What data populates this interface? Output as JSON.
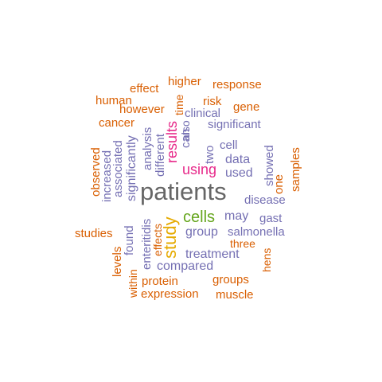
{
  "colors": {
    "orange": "#d95f02",
    "purple": "#7570b3",
    "magenta": "#e7298a",
    "green": "#66a61e",
    "gold": "#e6ab02",
    "gray": "#666666"
  },
  "words": [
    {
      "id": "patients",
      "text": "patients",
      "color": "gray"
    },
    {
      "id": "cells",
      "text": "cells",
      "color": "green"
    },
    {
      "id": "study",
      "text": "study",
      "color": "gold"
    },
    {
      "id": "results",
      "text": "results",
      "color": "magenta"
    },
    {
      "id": "using",
      "text": "using",
      "color": "magenta"
    },
    {
      "id": "group",
      "text": "group",
      "color": "purple"
    },
    {
      "id": "treatment",
      "text": "treatment",
      "color": "purple"
    },
    {
      "id": "compared",
      "text": "compared",
      "color": "purple"
    },
    {
      "id": "significantly",
      "text": "significantly",
      "color": "purple"
    },
    {
      "id": "associated",
      "text": "associated",
      "color": "purple"
    },
    {
      "id": "increased",
      "text": "increased",
      "color": "purple"
    },
    {
      "id": "analysis",
      "text": "analysis",
      "color": "purple"
    },
    {
      "id": "different",
      "text": "different",
      "color": "purple"
    },
    {
      "id": "can",
      "text": "can",
      "color": "purple"
    },
    {
      "id": "two",
      "text": "two",
      "color": "purple"
    },
    {
      "id": "also",
      "text": "also",
      "color": "purple"
    },
    {
      "id": "cell",
      "text": "cell",
      "color": "purple"
    },
    {
      "id": "data",
      "text": "data",
      "color": "purple"
    },
    {
      "id": "used",
      "text": "used",
      "color": "purple"
    },
    {
      "id": "showed",
      "text": "showed",
      "color": "purple"
    },
    {
      "id": "disease",
      "text": "disease",
      "color": "purple"
    },
    {
      "id": "may",
      "text": "may",
      "color": "purple"
    },
    {
      "id": "gast",
      "text": "gast",
      "color": "purple"
    },
    {
      "id": "salmonella",
      "text": "salmonella",
      "color": "purple"
    },
    {
      "id": "significant",
      "text": "significant",
      "color": "purple"
    },
    {
      "id": "clinical",
      "text": "clinical",
      "color": "purple"
    },
    {
      "id": "found",
      "text": "found",
      "color": "purple"
    },
    {
      "id": "enteritidis",
      "text": "enteritidis",
      "color": "purple"
    },
    {
      "id": "effects",
      "text": "effects",
      "color": "orange"
    },
    {
      "id": "effect",
      "text": "effect",
      "color": "orange"
    },
    {
      "id": "higher",
      "text": "higher",
      "color": "orange"
    },
    {
      "id": "response",
      "text": "response",
      "color": "orange"
    },
    {
      "id": "human",
      "text": "human",
      "color": "orange"
    },
    {
      "id": "however",
      "text": "however",
      "color": "orange"
    },
    {
      "id": "time",
      "text": "time",
      "color": "orange"
    },
    {
      "id": "risk",
      "text": "risk",
      "color": "orange"
    },
    {
      "id": "gene",
      "text": "gene",
      "color": "orange"
    },
    {
      "id": "cancer",
      "text": "cancer",
      "color": "orange"
    },
    {
      "id": "observed",
      "text": "observed",
      "color": "orange"
    },
    {
      "id": "one",
      "text": "one",
      "color": "orange"
    },
    {
      "id": "samples",
      "text": "samples",
      "color": "orange"
    },
    {
      "id": "studies",
      "text": "studies",
      "color": "orange"
    },
    {
      "id": "levels",
      "text": "levels",
      "color": "orange"
    },
    {
      "id": "within",
      "text": "within",
      "color": "orange"
    },
    {
      "id": "protein",
      "text": "protein",
      "color": "orange"
    },
    {
      "id": "expression",
      "text": "expression",
      "color": "orange"
    },
    {
      "id": "muscle",
      "text": "muscle",
      "color": "orange"
    },
    {
      "id": "groups",
      "text": "groups",
      "color": "orange"
    },
    {
      "id": "three",
      "text": "three",
      "color": "orange"
    },
    {
      "id": "hens",
      "text": "hens",
      "color": "orange"
    }
  ]
}
